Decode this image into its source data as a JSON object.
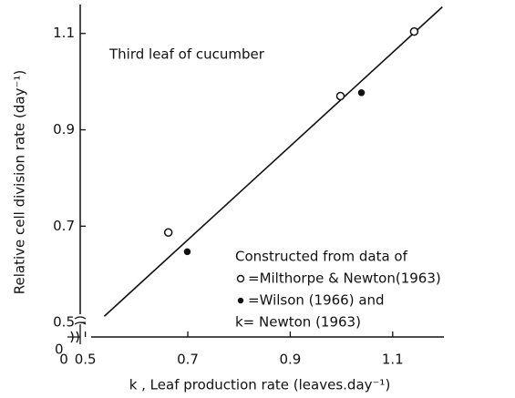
{
  "chart_data": {
    "type": "scatter",
    "xlabel": "k , Leaf production rate (leaves.day⁻¹)",
    "ylabel": "Relative cell division rate (day⁻¹)",
    "annotations": [
      "Third leaf of cucumber",
      "Constructed from data of",
      "k= Newton (1963)"
    ],
    "x_origin_label": "0",
    "y_origin_label": "0",
    "xlim": [
      0.49,
      1.2
    ],
    "ylim": [
      0.47,
      1.16
    ],
    "xticks": [
      0.5,
      0.7,
      0.9,
      1.1
    ],
    "yticks": [
      0.5,
      0.7,
      0.9,
      1.1
    ],
    "series": [
      {
        "name": "=Milthorpe & Newton(1963)",
        "marker": "open",
        "color": "#111",
        "x": [
          0.662,
          0.998,
          1.142
        ],
        "values": [
          0.687,
          0.97,
          1.104
        ]
      },
      {
        "name": "=Wilson (1966) and",
        "marker": "filled",
        "color": "#111",
        "x": [
          0.699,
          1.039
        ],
        "values": [
          0.647,
          0.977
        ]
      }
    ],
    "fit_line": {
      "x": [
        0.537,
        1.197
      ],
      "y": [
        0.513,
        1.155
      ]
    }
  }
}
